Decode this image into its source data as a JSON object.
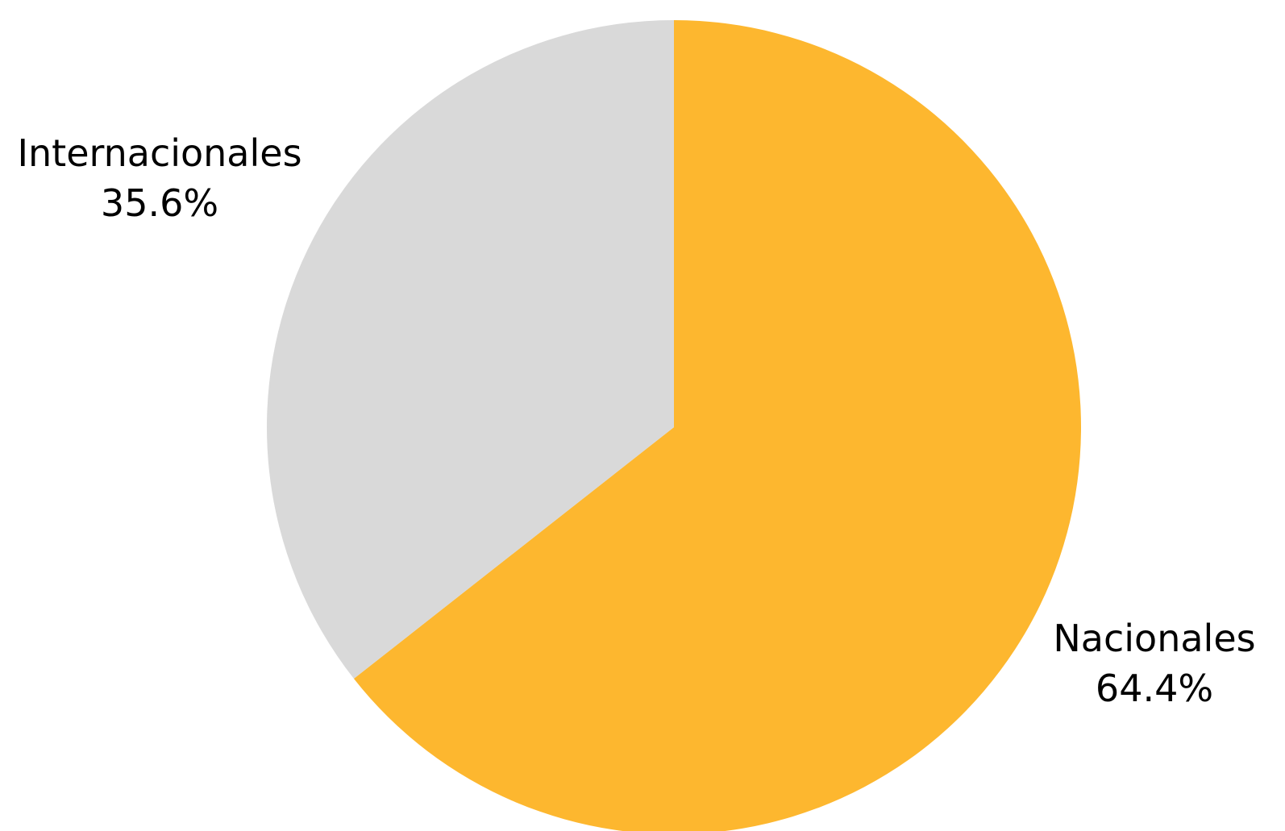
{
  "chart_data": {
    "type": "pie",
    "slices": [
      {
        "label": "Nacionales",
        "value": 64.4,
        "value_label": "64.4%",
        "color": "#FDB72F"
      },
      {
        "label": "Internacionales",
        "value": 35.6,
        "value_label": "35.6%",
        "color": "#D9D9D9"
      }
    ],
    "start_angle": "12 o'clock",
    "direction": "clockwise",
    "legend": "none (labels placed beside slices)"
  }
}
